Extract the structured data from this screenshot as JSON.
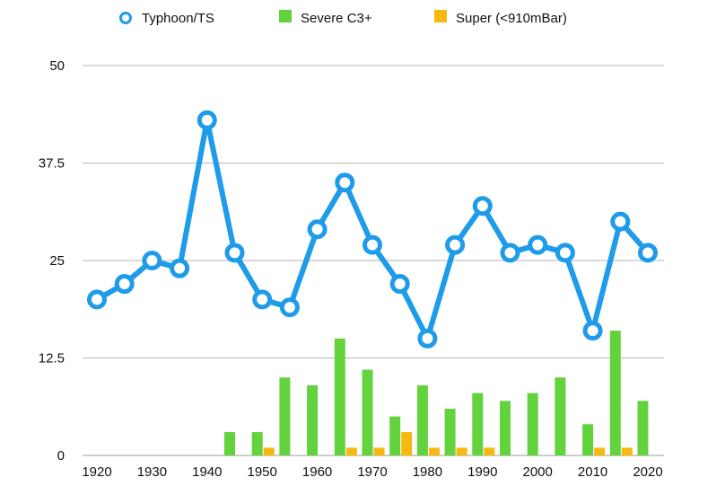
{
  "colors": {
    "typhoon": "#1e9be9",
    "severe": "#62d33d",
    "super": "#f7b80f",
    "grid": "#b5b5b5"
  },
  "legend": [
    {
      "key": "typhoon",
      "label": "Typhoon/TS",
      "icon": "ring-marker-icon"
    },
    {
      "key": "severe",
      "label": "Severe C3+",
      "icon": "green-square-icon"
    },
    {
      "key": "super",
      "label": "Super (<910mBar)",
      "icon": "orange-square-icon"
    }
  ],
  "chart_data": {
    "type": "bar",
    "title": "",
    "xlabel": "",
    "ylabel": "",
    "ylim": [
      0,
      50
    ],
    "yticks": [
      "0",
      "12.5",
      "25",
      "37.5",
      "50"
    ],
    "xticks": [
      "1920",
      "1930",
      "1940",
      "1950",
      "1960",
      "1970",
      "1980",
      "1990",
      "2000",
      "2010",
      "2020"
    ],
    "grid": true,
    "legend_position": "top",
    "categories": [
      "1920",
      "1925",
      "1930",
      "1935",
      "1940",
      "1945",
      "1950",
      "1955",
      "1960",
      "1965",
      "1970",
      "1975",
      "1980",
      "1985",
      "1990",
      "1995",
      "2000",
      "2005",
      "2010",
      "2015",
      "2020"
    ],
    "series": [
      {
        "name": "Typhoon/TS",
        "type": "line",
        "key": "typhoon",
        "values": [
          20,
          22,
          25,
          24,
          43,
          26,
          20,
          19,
          29,
          35,
          27,
          22,
          15,
          27,
          32,
          26,
          27,
          26,
          16,
          30,
          26
        ]
      },
      {
        "name": "Severe C3+",
        "type": "bar",
        "key": "severe",
        "values": [
          0,
          0,
          0,
          0,
          0,
          3,
          3,
          10,
          9,
          15,
          11,
          5,
          9,
          6,
          8,
          7,
          8,
          10,
          4,
          16,
          7
        ]
      },
      {
        "name": "Super (<910mBar)",
        "type": "bar",
        "key": "super",
        "values": [
          0,
          0,
          0,
          0,
          0,
          0,
          1,
          0,
          0,
          1,
          1,
          3,
          1,
          1,
          1,
          0,
          0,
          0,
          1,
          1,
          0
        ]
      }
    ]
  }
}
